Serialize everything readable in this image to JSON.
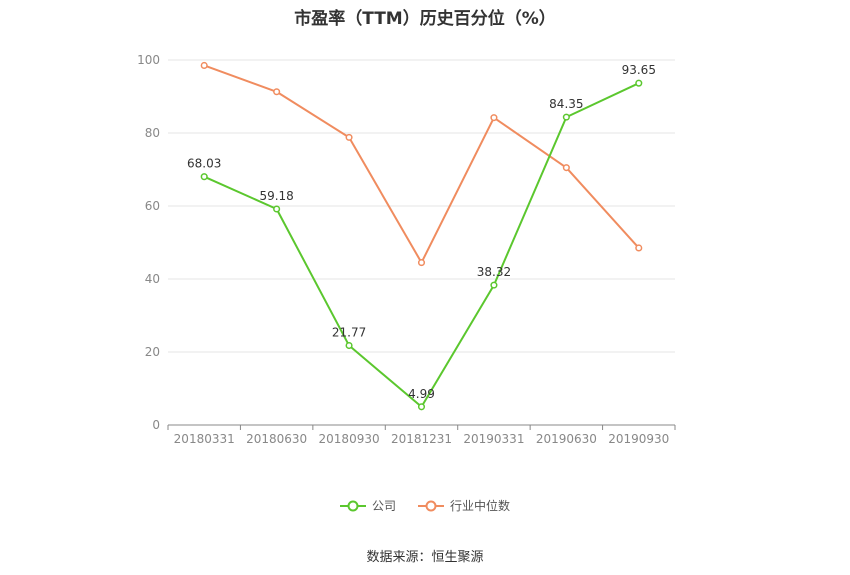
{
  "chart_data": {
    "type": "line",
    "title": "市盈率（TTM）历史百分位（%）",
    "categories": [
      "20180331",
      "20180630",
      "20180930",
      "20181231",
      "20190331",
      "20190630",
      "20190930"
    ],
    "series": [
      {
        "name": "公司",
        "color": "#5bc72e",
        "values": [
          68.03,
          59.18,
          21.77,
          4.99,
          38.32,
          84.35,
          93.65
        ],
        "show_labels": true
      },
      {
        "name": "行业中位数",
        "color": "#f08c5f",
        "values": [
          98.5,
          91.3,
          78.8,
          44.5,
          84.2,
          70.5,
          48.5
        ],
        "show_labels": false
      }
    ],
    "yticks": [
      0,
      20,
      40,
      60,
      80,
      100
    ],
    "ylim": [
      0,
      100
    ],
    "grid": true,
    "legend": "bottom"
  },
  "source": "数据来源：恒生聚源"
}
